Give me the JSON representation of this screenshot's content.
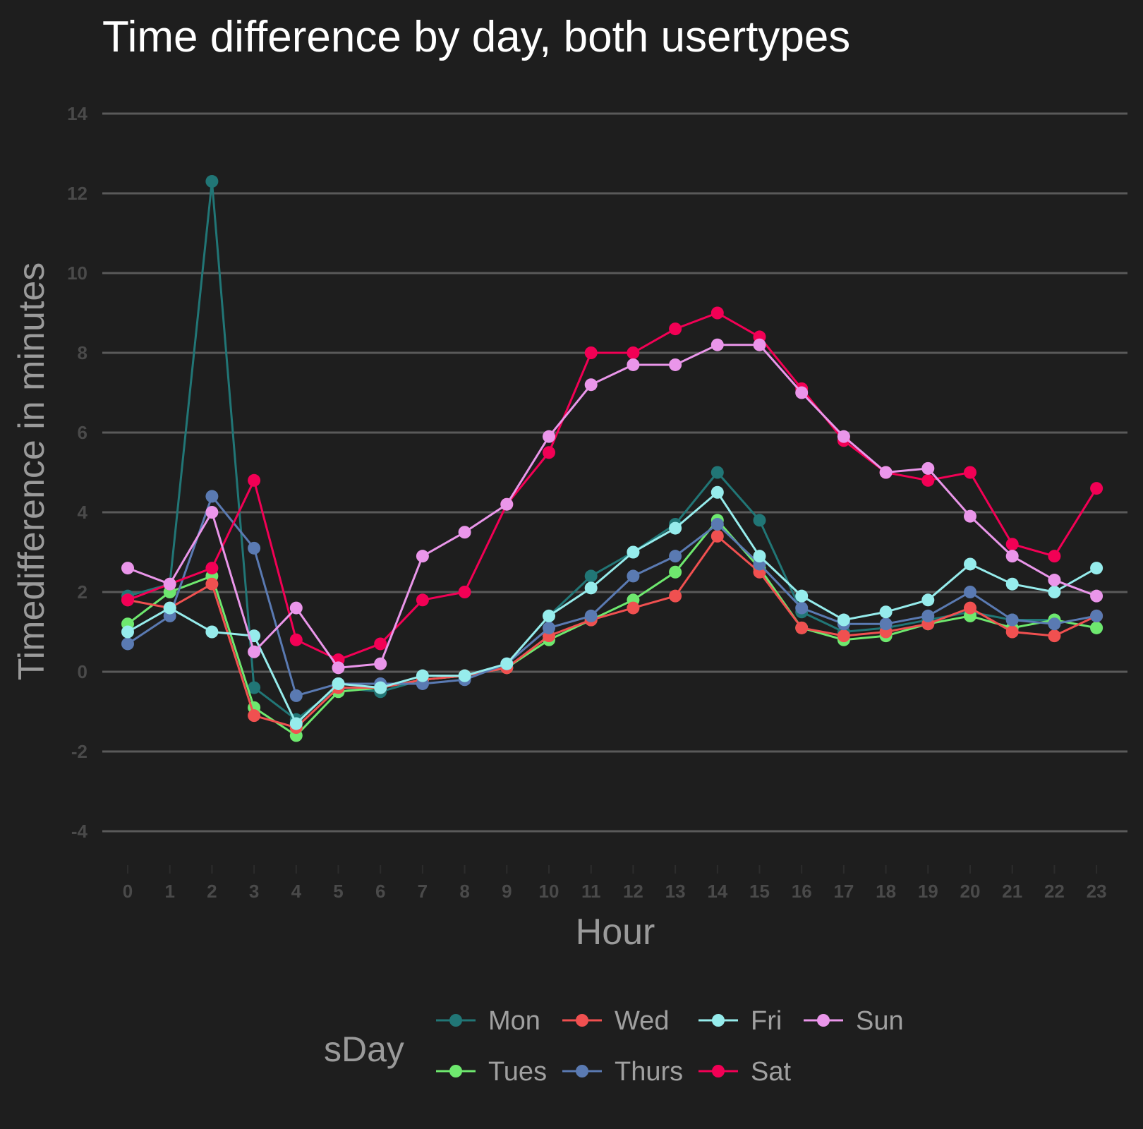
{
  "chart_data": {
    "type": "line",
    "title": "Time difference by day, both usertypes",
    "xlabel": "Hour",
    "ylabel": "Timedifference in minutes",
    "x": [
      0,
      1,
      2,
      3,
      4,
      5,
      6,
      7,
      8,
      9,
      10,
      11,
      12,
      13,
      14,
      15,
      16,
      17,
      18,
      19,
      20,
      21,
      22,
      23
    ],
    "xticks": [
      "0",
      "1",
      "2",
      "3",
      "4",
      "5",
      "6",
      "7",
      "8",
      "9",
      "10",
      "11",
      "12",
      "13",
      "14",
      "15",
      "16",
      "17",
      "18",
      "19",
      "20",
      "21",
      "22",
      "23"
    ],
    "yticks": [
      "-4",
      "-2",
      "0",
      "2",
      "4",
      "6",
      "8",
      "10",
      "12",
      "14"
    ],
    "ylim": [
      -4.9,
      14.3
    ],
    "grid": true,
    "legend": {
      "title": "sDay",
      "position": "bottom",
      "order": [
        "Mon",
        "Tues",
        "Wed",
        "Thurs",
        "Fri",
        "Sat",
        "Sun"
      ]
    },
    "series": [
      {
        "name": "Mon",
        "color": "#217676",
        "values": [
          1.9,
          2.2,
          12.3,
          -0.4,
          -1.2,
          -0.4,
          -0.5,
          -0.2,
          -0.1,
          0.2,
          1.4,
          2.4,
          3.0,
          3.7,
          5.0,
          3.8,
          1.5,
          1.0,
          1.1,
          1.3,
          1.5,
          1.3,
          1.3,
          1.1
        ]
      },
      {
        "name": "Tues",
        "color": "#6ee86e",
        "values": [
          1.2,
          2.0,
          2.4,
          -0.9,
          -1.6,
          -0.5,
          -0.4,
          -0.2,
          -0.1,
          0.1,
          0.8,
          1.3,
          1.8,
          2.5,
          3.8,
          2.6,
          1.1,
          0.8,
          0.9,
          1.2,
          1.4,
          1.1,
          1.3,
          1.1
        ]
      },
      {
        "name": "Wed",
        "color": "#f05050",
        "values": [
          1.8,
          1.6,
          2.2,
          -1.1,
          -1.4,
          -0.4,
          -0.4,
          -0.2,
          -0.1,
          0.1,
          0.9,
          1.3,
          1.6,
          1.9,
          3.4,
          2.5,
          1.1,
          0.9,
          1.0,
          1.2,
          1.6,
          1.0,
          0.9,
          1.4
        ]
      },
      {
        "name": "Thurs",
        "color": "#5a7ab2",
        "values": [
          0.7,
          1.4,
          4.4,
          3.1,
          -0.6,
          -0.3,
          -0.3,
          -0.3,
          -0.2,
          0.2,
          1.1,
          1.4,
          2.4,
          2.9,
          3.7,
          2.7,
          1.6,
          1.2,
          1.2,
          1.4,
          2.0,
          1.3,
          1.2,
          1.4
        ]
      },
      {
        "name": "Fri",
        "color": "#96ecec",
        "values": [
          1.0,
          1.6,
          1.0,
          0.9,
          -1.3,
          -0.3,
          -0.4,
          -0.1,
          -0.1,
          0.2,
          1.4,
          2.1,
          3.0,
          3.6,
          4.5,
          2.9,
          1.9,
          1.3,
          1.5,
          1.8,
          2.7,
          2.2,
          2.0,
          2.6
        ]
      },
      {
        "name": "Sat",
        "color": "#f20055",
        "values": [
          1.8,
          2.2,
          2.6,
          4.8,
          0.8,
          0.3,
          0.7,
          1.8,
          2.0,
          4.2,
          5.5,
          8.0,
          8.0,
          8.6,
          9.0,
          8.4,
          7.1,
          5.8,
          5.0,
          4.8,
          5.0,
          3.2,
          2.9,
          4.6
        ]
      },
      {
        "name": "Sun",
        "color": "#ea96ea",
        "values": [
          2.6,
          2.2,
          4.0,
          0.5,
          1.6,
          0.1,
          0.2,
          2.9,
          3.5,
          4.2,
          5.9,
          7.2,
          7.7,
          7.7,
          8.2,
          8.2,
          7.0,
          5.9,
          5.0,
          5.1,
          3.9,
          2.9,
          2.3,
          1.9
        ]
      }
    ]
  }
}
